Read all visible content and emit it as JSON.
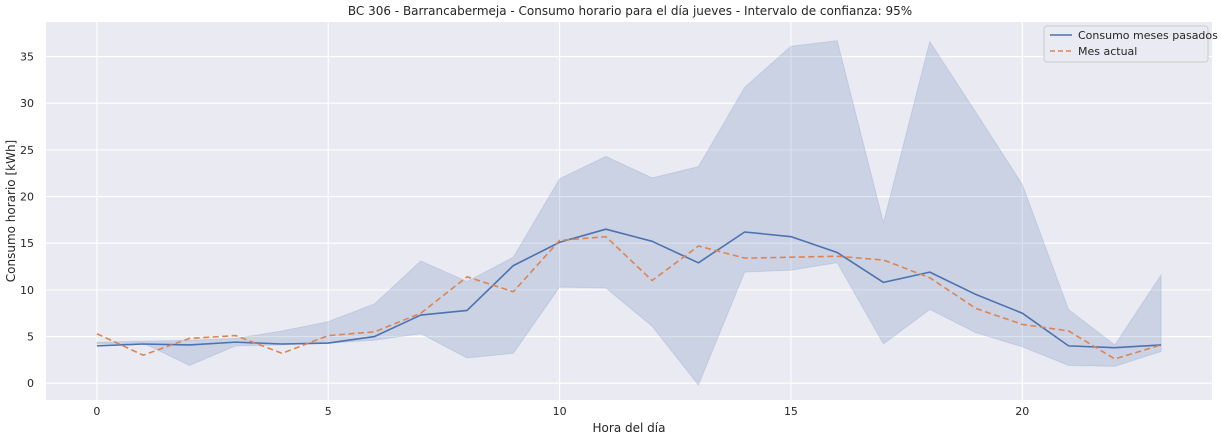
{
  "chart_data": {
    "type": "line",
    "title": "BC 306 - Barrancabermeja - Consumo horario para el día jueves - Intervalo de confianza: 95%",
    "xlabel": "Hora del día",
    "ylabel": "Consumo horario [kWh]",
    "x": [
      0,
      1,
      2,
      3,
      4,
      5,
      6,
      7,
      8,
      9,
      10,
      11,
      12,
      13,
      14,
      15,
      16,
      17,
      18,
      19,
      20,
      21,
      22,
      23
    ],
    "xlim": [
      -1.1,
      24.1
    ],
    "ylim": [
      -1.8,
      38.7
    ],
    "xticks": [
      0,
      5,
      10,
      15,
      20
    ],
    "yticks": [
      0,
      5,
      10,
      15,
      20,
      25,
      30,
      35
    ],
    "grid": true,
    "legend_position": "top-right",
    "series": [
      {
        "name": "Consumo meses pasados",
        "style": "solid",
        "color": "#4c72b0",
        "values": [
          4.0,
          4.2,
          4.1,
          4.4,
          4.2,
          4.3,
          5.0,
          7.3,
          7.8,
          12.6,
          15.1,
          16.5,
          15.2,
          12.9,
          16.2,
          15.7,
          14.0,
          10.8,
          11.9,
          9.5,
          7.5,
          4.0,
          3.8,
          4.1
        ],
        "ci_lower": [
          4.2,
          4.3,
          1.9,
          4.0,
          4.1,
          4.3,
          4.6,
          5.3,
          2.7,
          3.2,
          10.3,
          10.2,
          6.1,
          -0.2,
          11.9,
          12.1,
          12.9,
          4.2,
          7.9,
          5.4,
          3.9,
          1.9,
          1.8,
          3.4
        ],
        "ci_upper": [
          4.4,
          4.5,
          4.6,
          4.8,
          5.6,
          6.6,
          8.5,
          13.1,
          10.9,
          13.5,
          21.9,
          24.3,
          22.0,
          23.2,
          31.7,
          36.1,
          36.7,
          17.2,
          36.6,
          29.0,
          21.3,
          7.9,
          4.1,
          11.6
        ]
      },
      {
        "name": "Mes actual",
        "style": "dashed",
        "color": "#dd8452",
        "values": [
          5.3,
          3.0,
          4.8,
          5.1,
          3.2,
          5.1,
          5.5,
          7.5,
          11.4,
          9.8,
          15.3,
          15.7,
          11.0,
          14.7,
          13.4,
          13.5,
          13.6,
          13.2,
          11.3,
          8.0,
          6.3,
          5.6,
          2.6,
          4.1
        ]
      }
    ]
  }
}
